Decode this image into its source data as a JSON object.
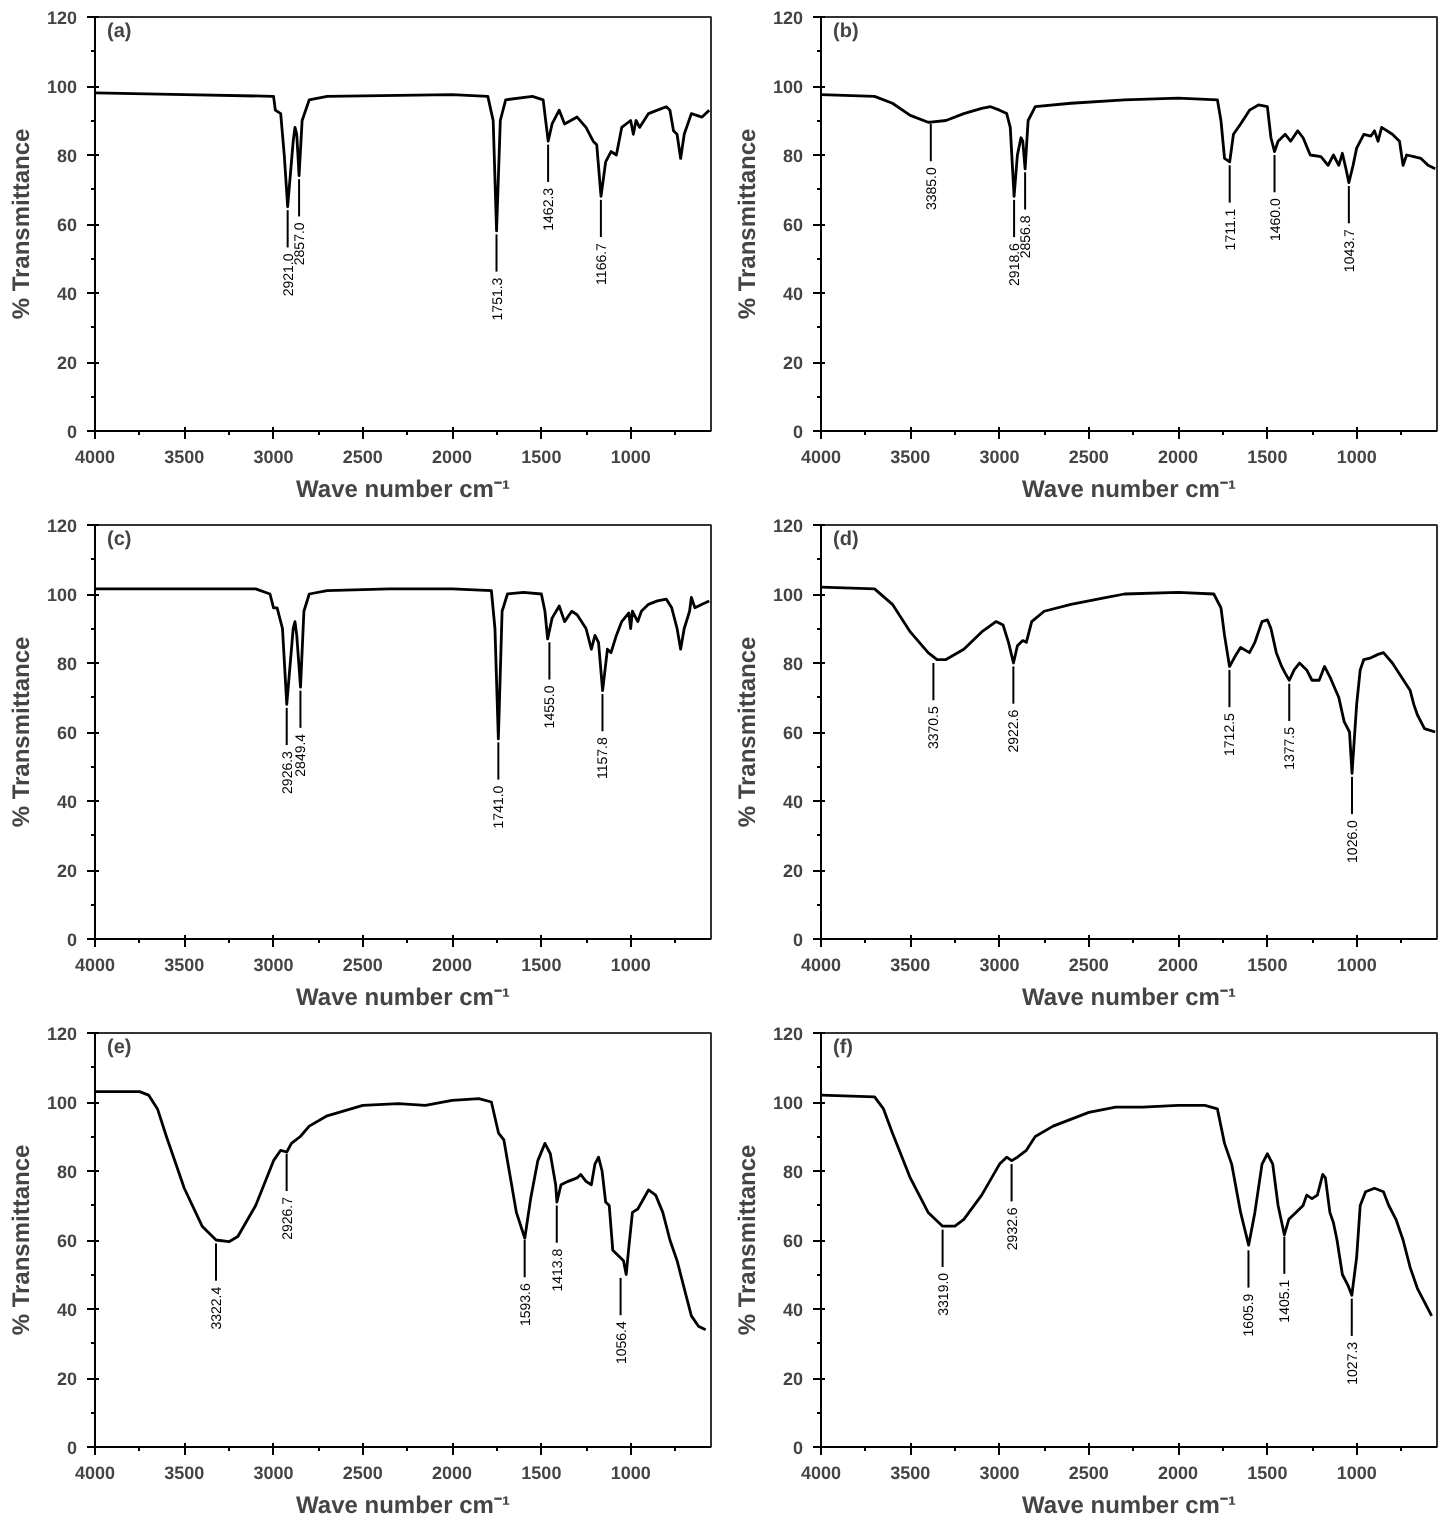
{
  "chart_data": [
    {
      "type": "line",
      "title": "(a)",
      "xlabel": "Wave number cm⁻¹",
      "ylabel": "% Transmittance",
      "xlim": [
        4000,
        550
      ],
      "ylim": [
        0,
        120
      ],
      "xticks": [
        4000,
        3500,
        3000,
        2500,
        2000,
        1500,
        1000
      ],
      "yticks": [
        0,
        20,
        40,
        60,
        80,
        100,
        120
      ],
      "grid": false,
      "x": [
        4000,
        3500,
        3000,
        2990,
        2960,
        2940,
        2921,
        2890,
        2880,
        2870,
        2857,
        2840,
        2800,
        2700,
        2000,
        1800,
        1770,
        1751,
        1730,
        1700,
        1550,
        1490,
        1462,
        1440,
        1400,
        1370,
        1300,
        1250,
        1210,
        1190,
        1166,
        1140,
        1110,
        1080,
        1050,
        1000,
        985,
        970,
        950,
        900,
        850,
        800,
        780,
        760,
        740,
        720,
        700,
        660,
        600,
        560
      ],
      "series": [
        {
          "color": "#000000",
          "values": [
            98,
            97.5,
            97,
            93,
            92,
            80,
            65,
            84,
            88,
            86,
            74,
            90,
            96,
            97,
            97.5,
            97,
            90,
            58,
            90,
            96,
            97,
            96,
            84,
            89,
            93,
            89,
            91,
            88,
            84,
            83,
            68,
            78,
            81,
            80,
            88,
            90,
            86,
            90,
            88,
            92,
            93,
            94,
            93,
            87,
            86,
            79,
            86,
            92,
            91,
            93
          ]
        }
      ],
      "annotations": [
        {
          "text": "2921.0",
          "x": 2921.0,
          "y": 64
        },
        {
          "text": "2857.0",
          "x": 2857.0,
          "y": 73
        },
        {
          "text": "1751.3",
          "x": 1751.3,
          "y": 57
        },
        {
          "text": "1462.3",
          "x": 1462.3,
          "y": 83
        },
        {
          "text": "1166.7",
          "x": 1166.7,
          "y": 67
        }
      ]
    },
    {
      "type": "line",
      "title": "(b)",
      "xlabel": "Wave number cm⁻¹",
      "ylabel": "% Transmittance",
      "xlim": [
        4000,
        550
      ],
      "ylim": [
        0,
        120
      ],
      "xticks": [
        4000,
        3500,
        3000,
        2500,
        2000,
        1500,
        1000
      ],
      "yticks": [
        0,
        20,
        40,
        60,
        80,
        100,
        120
      ],
      "grid": false,
      "x": [
        4000,
        3700,
        3600,
        3500,
        3400,
        3385,
        3300,
        3200,
        3100,
        3050,
        3000,
        2960,
        2940,
        2918.6,
        2900,
        2880,
        2870,
        2856.8,
        2840,
        2800,
        2600,
        2300,
        2000,
        1780,
        1760,
        1740,
        1711,
        1690,
        1650,
        1600,
        1550,
        1500,
        1480,
        1460,
        1440,
        1400,
        1370,
        1330,
        1300,
        1260,
        1200,
        1160,
        1130,
        1100,
        1080,
        1060,
        1043.7,
        1020,
        1000,
        960,
        920,
        900,
        880,
        860,
        800,
        760,
        740,
        720,
        680,
        640,
        600,
        560
      ],
      "series": [
        {
          "color": "#000000",
          "values": [
            97.5,
            97,
            95,
            91.5,
            89.5,
            89.5,
            90,
            92,
            93.5,
            94,
            93,
            92,
            88,
            68,
            80,
            85,
            84,
            76,
            90,
            94,
            95,
            96,
            96.5,
            96,
            90,
            79,
            78,
            86,
            89,
            93,
            94.5,
            94,
            85,
            81,
            84,
            86,
            84,
            87,
            85,
            80,
            79.5,
            77,
            80,
            77,
            80.5,
            76,
            72,
            77,
            82,
            86,
            85.5,
            87,
            84,
            88,
            86,
            84,
            77,
            80,
            79.5,
            79,
            77,
            76
          ]
        }
      ],
      "annotations": [
        {
          "text": "3385.0",
          "x": 3385.0,
          "y": 89
        },
        {
          "text": "2918.6",
          "x": 2918.6,
          "y": 67
        },
        {
          "text": "2856.8",
          "x": 2856.8,
          "y": 75
        },
        {
          "text": "1711.1",
          "x": 1711.1,
          "y": 77
        },
        {
          "text": "1460.0",
          "x": 1460.0,
          "y": 80
        },
        {
          "text": "1043.7",
          "x": 1043.7,
          "y": 71
        }
      ]
    },
    {
      "type": "line",
      "title": "(c)",
      "xlabel": "Wave number cm⁻¹",
      "ylabel": "% Transmittance",
      "xlim": [
        4000,
        550
      ],
      "ylim": [
        0,
        120
      ],
      "xticks": [
        4000,
        3500,
        3000,
        2500,
        2000,
        1500,
        1000
      ],
      "yticks": [
        0,
        20,
        40,
        60,
        80,
        100,
        120
      ],
      "grid": false,
      "x": [
        4000,
        3100,
        3020,
        3000,
        2980,
        2950,
        2926,
        2890,
        2880,
        2870,
        2849,
        2830,
        2800,
        2700,
        2350,
        2000,
        1780,
        1760,
        1741,
        1720,
        1690,
        1600,
        1500,
        1480,
        1465,
        1440,
        1400,
        1370,
        1330,
        1300,
        1250,
        1220,
        1200,
        1180,
        1157,
        1130,
        1110,
        1080,
        1050,
        1010,
        1000,
        990,
        960,
        940,
        900,
        850,
        800,
        770,
        740,
        720,
        700,
        670,
        660,
        640,
        600,
        560
      ],
      "series": [
        {
          "color": "#000000",
          "values": [
            101.5,
            101.5,
            100,
            96,
            96,
            90,
            68,
            90,
            92,
            88,
            73,
            95,
            100,
            101,
            101.5,
            101.5,
            101,
            90,
            58,
            95,
            100,
            100.5,
            100,
            95,
            87,
            93,
            96.5,
            92,
            95,
            94,
            90,
            84,
            88,
            86,
            72,
            84,
            83,
            88,
            92,
            94.5,
            90,
            95,
            92,
            95,
            97,
            98,
            98.5,
            96,
            90,
            84,
            90,
            95,
            99,
            96,
            97,
            98
          ]
        }
      ],
      "annotations": [
        {
          "text": "2926.3",
          "x": 2926.3,
          "y": 67
        },
        {
          "text": "2849.4",
          "x": 2849.4,
          "y": 72
        },
        {
          "text": "1741.0",
          "x": 1741.0,
          "y": 57
        },
        {
          "text": "1455.0",
          "x": 1455.0,
          "y": 86
        },
        {
          "text": "1157.8",
          "x": 1157.8,
          "y": 71
        }
      ]
    },
    {
      "type": "line",
      "title": "(d)",
      "xlabel": "Wave number cm⁻¹",
      "ylabel": "% Transmittance",
      "xlim": [
        4000,
        550
      ],
      "ylim": [
        0,
        120
      ],
      "xticks": [
        4000,
        3500,
        3000,
        2500,
        2000,
        1500,
        1000
      ],
      "yticks": [
        0,
        20,
        40,
        60,
        80,
        100,
        120
      ],
      "grid": false,
      "x": [
        4000,
        3700,
        3600,
        3500,
        3400,
        3350,
        3300,
        3200,
        3100,
        3020,
        2980,
        2950,
        2922,
        2900,
        2870,
        2850,
        2820,
        2750,
        2600,
        2400,
        2300,
        2000,
        1800,
        1760,
        1740,
        1712,
        1680,
        1650,
        1600,
        1570,
        1530,
        1500,
        1480,
        1450,
        1420,
        1400,
        1377,
        1350,
        1320,
        1280,
        1250,
        1210,
        1180,
        1150,
        1100,
        1070,
        1040,
        1026,
        1000,
        980,
        960,
        920,
        880,
        850,
        800,
        750,
        700,
        680,
        660,
        620,
        560
      ],
      "series": [
        {
          "color": "#000000",
          "values": [
            102,
            101.5,
            97,
            89,
            83,
            81,
            81,
            84,
            89,
            92,
            91,
            86,
            80,
            85,
            86.5,
            86,
            92,
            95,
            97,
            99,
            100,
            100.5,
            100,
            96,
            88,
            79,
            82,
            84.5,
            83,
            86,
            92,
            92.5,
            90,
            83,
            79,
            77,
            75,
            78,
            80,
            78,
            75,
            75,
            79,
            76,
            70,
            63,
            60,
            48,
            68,
            78,
            81,
            81.5,
            82.5,
            83,
            80,
            76,
            72,
            68,
            65,
            61,
            60
          ]
        }
      ],
      "annotations": [
        {
          "text": "3370.5",
          "x": 3370.5,
          "y": 80
        },
        {
          "text": "2922.6",
          "x": 2922.6,
          "y": 79
        },
        {
          "text": "1712.5",
          "x": 1712.5,
          "y": 78
        },
        {
          "text": "1377.5",
          "x": 1377.5,
          "y": 74
        },
        {
          "text": "1026.0",
          "x": 1026.0,
          "y": 47
        }
      ]
    },
    {
      "type": "line",
      "title": "(e)",
      "xlabel": "Wave number cm⁻¹",
      "ylabel": "% Transmittance",
      "xlim": [
        4000,
        550
      ],
      "ylim": [
        0,
        120
      ],
      "xticks": [
        4000,
        3500,
        3000,
        2500,
        2000,
        1500,
        1000
      ],
      "yticks": [
        0,
        20,
        40,
        60,
        80,
        100,
        120
      ],
      "grid": false,
      "x": [
        4000,
        3750,
        3700,
        3650,
        3600,
        3500,
        3400,
        3322,
        3250,
        3200,
        3100,
        3000,
        2960,
        2926,
        2900,
        2850,
        2800,
        2700,
        2500,
        2300,
        2150,
        2000,
        1850,
        1780,
        1740,
        1710,
        1680,
        1640,
        1593,
        1560,
        1520,
        1480,
        1450,
        1420,
        1413,
        1390,
        1350,
        1300,
        1280,
        1250,
        1220,
        1200,
        1180,
        1160,
        1140,
        1120,
        1100,
        1080,
        1060,
        1040,
        1025,
        1010,
        990,
        960,
        900,
        860,
        820,
        780,
        740,
        700,
        660,
        620,
        580
      ],
      "series": [
        {
          "color": "#000000",
          "values": [
            103,
            103,
            102,
            98,
            90,
            75,
            64,
            60,
            59.5,
            61,
            70,
            83,
            86,
            85.5,
            88,
            90,
            93,
            96,
            99,
            99.5,
            99,
            100.5,
            101,
            100,
            91,
            89,
            80,
            68,
            60.5,
            72,
            83,
            88,
            85,
            76,
            71,
            76,
            77,
            78,
            79,
            77,
            76,
            82,
            84,
            80,
            71,
            70,
            57,
            56,
            55,
            54,
            50,
            58,
            68,
            69,
            74.5,
            73,
            68,
            60,
            54,
            46,
            38,
            35,
            34
          ]
        }
      ],
      "annotations": [
        {
          "text": "3322.4",
          "x": 3322.4,
          "y": 59
        },
        {
          "text": "2926.7",
          "x": 2926.7,
          "y": 85
        },
        {
          "text": "1593.6",
          "x": 1593.6,
          "y": 60
        },
        {
          "text": "1413.8",
          "x": 1413.8,
          "y": 70
        },
        {
          "text": "1056.4",
          "x": 1056.4,
          "y": 49
        }
      ]
    },
    {
      "type": "line",
      "title": "(f)",
      "xlabel": "Wave number cm⁻¹",
      "ylabel": "% Transmittance",
      "xlim": [
        4000,
        550
      ],
      "ylim": [
        0,
        120
      ],
      "xticks": [
        4000,
        3500,
        3000,
        2500,
        2000,
        1500,
        1000
      ],
      "yticks": [
        0,
        20,
        40,
        60,
        80,
        100,
        120
      ],
      "grid": false,
      "x": [
        4000,
        3700,
        3650,
        3600,
        3500,
        3400,
        3319,
        3250,
        3200,
        3100,
        3000,
        2960,
        2932,
        2900,
        2850,
        2800,
        2700,
        2500,
        2350,
        2200,
        2000,
        1850,
        1780,
        1740,
        1700,
        1650,
        1605,
        1570,
        1530,
        1500,
        1470,
        1440,
        1405,
        1380,
        1340,
        1300,
        1280,
        1250,
        1220,
        1190,
        1175,
        1150,
        1130,
        1110,
        1080,
        1050,
        1027,
        1000,
        980,
        950,
        900,
        850,
        820,
        780,
        740,
        700,
        660,
        620,
        580
      ],
      "series": [
        {
          "color": "#000000",
          "values": [
            102,
            101.5,
            98,
            91,
            78,
            68,
            64,
            64,
            66,
            73,
            82,
            84,
            83,
            84,
            86,
            90,
            93,
            97,
            98.5,
            98.5,
            99,
            99,
            98,
            88,
            82,
            68,
            58.5,
            68,
            82,
            85,
            82,
            70,
            61.5,
            66,
            68,
            70,
            73,
            72,
            73,
            79,
            78,
            68,
            65,
            60,
            50,
            47,
            44,
            55,
            70,
            74,
            75,
            74,
            70,
            66,
            60,
            52,
            46,
            42,
            38
          ]
        }
      ],
      "annotations": [
        {
          "text": "3319.0",
          "x": 3319.0,
          "y": 63
        },
        {
          "text": "2932.6",
          "x": 2932.6,
          "y": 82
        },
        {
          "text": "1605.9",
          "x": 1605.9,
          "y": 57
        },
        {
          "text": "1405.1",
          "x": 1405.1,
          "y": 61
        },
        {
          "text": "1027.3",
          "x": 1027.3,
          "y": 43
        }
      ]
    }
  ]
}
